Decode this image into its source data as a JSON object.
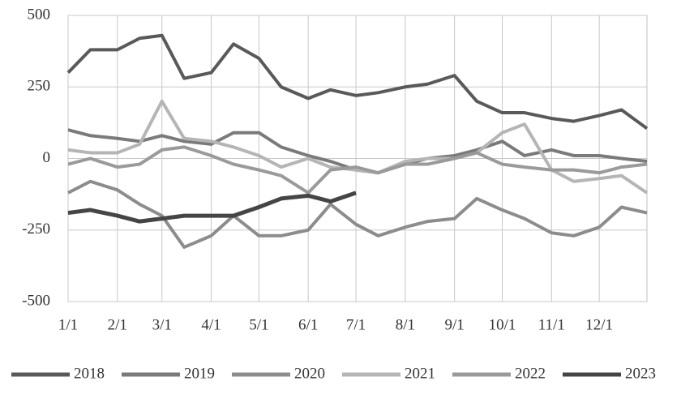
{
  "chart_data": {
    "type": "line",
    "x": [
      "1/1",
      "1/15",
      "2/1",
      "2/15",
      "3/1",
      "3/15",
      "4/1",
      "4/15",
      "5/1",
      "5/15",
      "6/1",
      "6/15",
      "7/1",
      "7/15",
      "8/1",
      "8/15",
      "9/1",
      "9/15",
      "10/1",
      "10/15",
      "11/1",
      "11/15",
      "12/1",
      "12/15",
      "12/31"
    ],
    "xlim": [
      "1/1",
      "12/31"
    ],
    "xticks": [
      "1/1",
      "2/1",
      "3/1",
      "4/1",
      "5/1",
      "6/1",
      "7/1",
      "8/1",
      "9/1",
      "10/1",
      "11/1",
      "12/1"
    ],
    "ylim": [
      -500,
      500
    ],
    "yticks": [
      -500,
      -250,
      0,
      250,
      500
    ],
    "grid": true,
    "legend": "bottom",
    "series": [
      {
        "name": "2018",
        "color": "#595959",
        "values": [
          300,
          380,
          380,
          420,
          430,
          280,
          300,
          400,
          350,
          250,
          210,
          240,
          220,
          230,
          250,
          260,
          290,
          200,
          160,
          160,
          140,
          130,
          150,
          170,
          105
        ]
      },
      {
        "name": "2019",
        "color": "#7a7a7a",
        "values": [
          100,
          80,
          70,
          60,
          80,
          60,
          50,
          90,
          90,
          40,
          10,
          -10,
          -40,
          -50,
          -20,
          0,
          10,
          30,
          60,
          10,
          30,
          10,
          10,
          0,
          -10
        ]
      },
      {
        "name": "2020",
        "color": "#8c8c8c",
        "values": [
          -120,
          -80,
          -110,
          -160,
          -200,
          -310,
          -270,
          -200,
          -270,
          -270,
          -250,
          -160,
          -230,
          -270,
          -240,
          -220,
          -210,
          -140,
          -180,
          -210,
          -260,
          -270,
          -240,
          -170,
          -190
        ]
      },
      {
        "name": "2021",
        "color": "#b5b5b5",
        "values": [
          30,
          20,
          20,
          50,
          200,
          70,
          60,
          40,
          10,
          -30,
          0,
          -30,
          -40,
          -50,
          -10,
          0,
          0,
          20,
          90,
          120,
          -40,
          -80,
          -70,
          -60,
          -120
        ]
      },
      {
        "name": "2022",
        "color": "#9a9a9a",
        "values": [
          -20,
          0,
          -30,
          -20,
          30,
          40,
          10,
          -20,
          -40,
          -60,
          -120,
          -40,
          -30,
          -50,
          -20,
          -20,
          0,
          20,
          -20,
          -30,
          -40,
          -40,
          -50,
          -30,
          -20
        ]
      },
      {
        "name": "2023",
        "color": "#454545",
        "values": [
          -190,
          -180,
          -200,
          -220,
          -210,
          -200,
          -200,
          -200,
          -170,
          -140,
          -130,
          -150,
          -120,
          null,
          null,
          null,
          null,
          null,
          null,
          null,
          null,
          null,
          null,
          null,
          null
        ]
      }
    ]
  }
}
